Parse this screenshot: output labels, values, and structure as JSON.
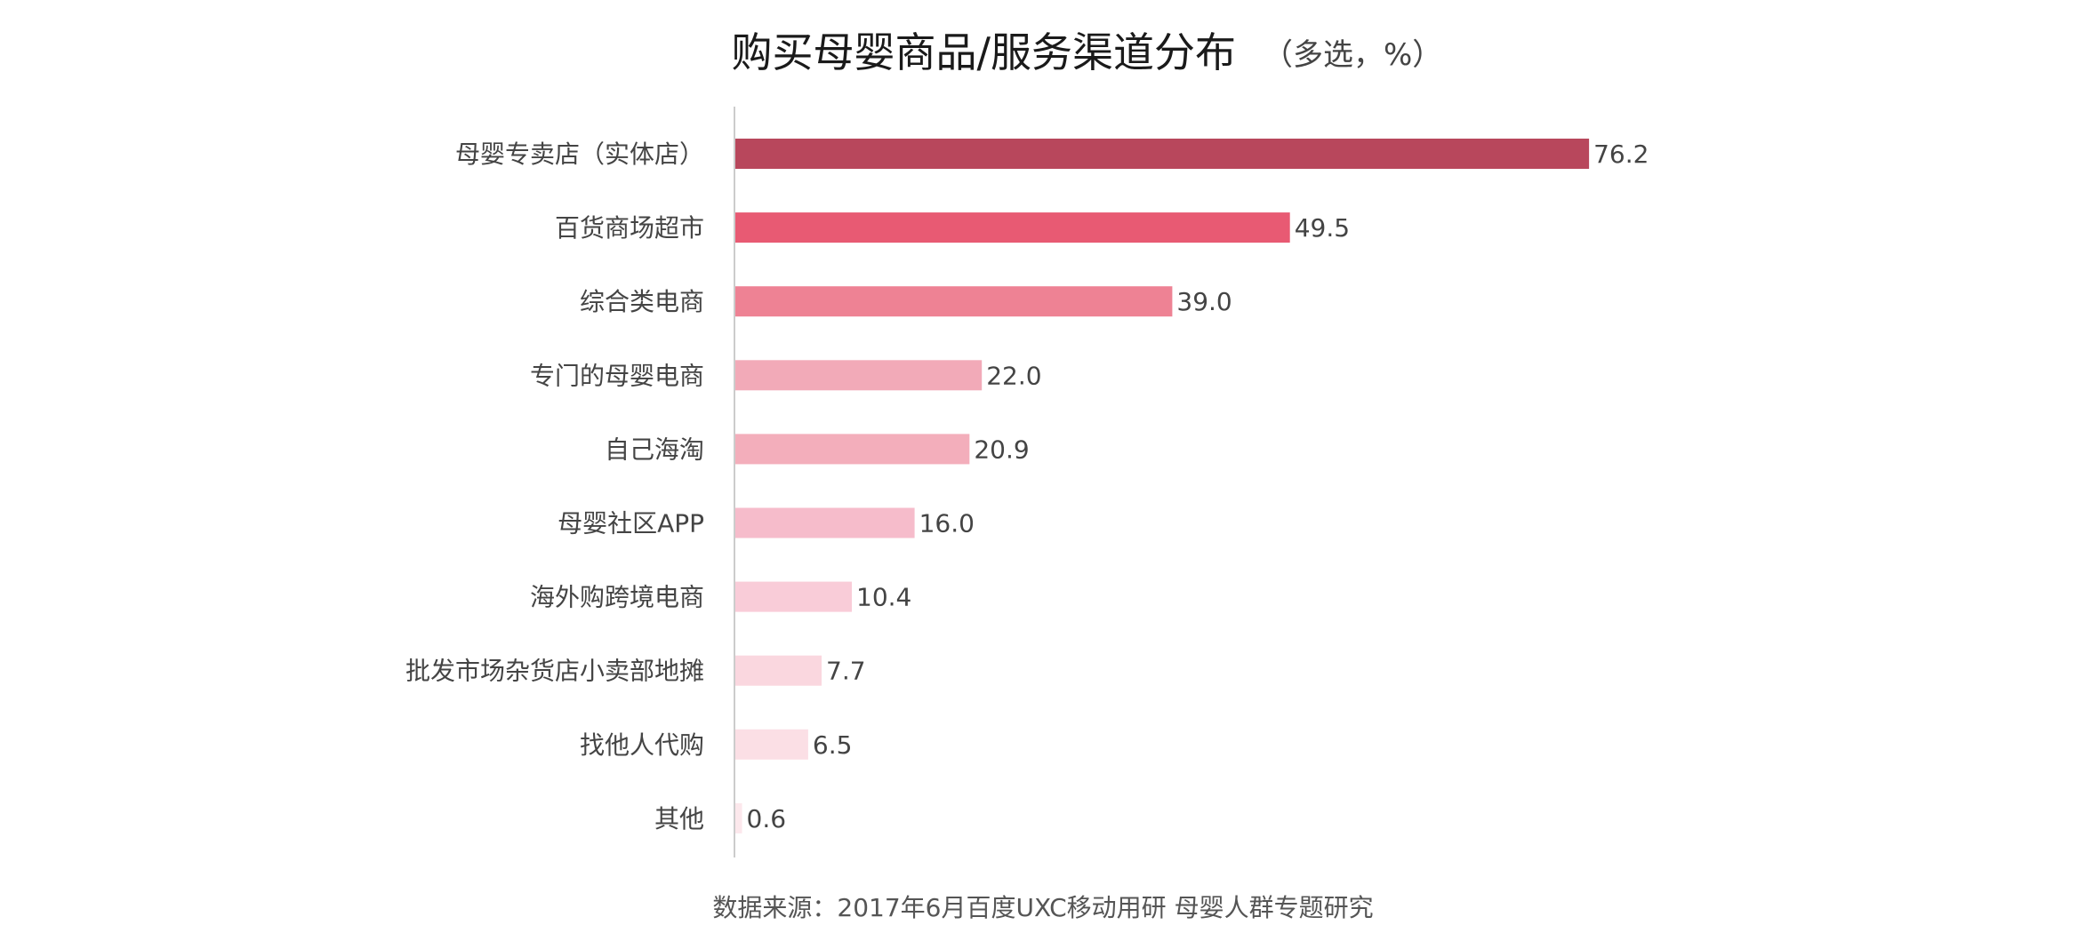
{
  "chart_data": {
    "type": "bar",
    "orientation": "horizontal",
    "title": "购买母婴商品/服务渠道分布",
    "subtitle": "（多选，%）",
    "categories": [
      "母婴专卖店（实体店）",
      "百货商场超市",
      "综合类电商",
      "专门的母婴电商",
      "自己海淘",
      "母婴社区APP",
      "海外购跨境电商",
      "批发市场杂货店小卖部地摊",
      "找他人代购",
      "其他"
    ],
    "values": [
      76.2,
      49.5,
      39.0,
      22.0,
      20.9,
      16.0,
      10.4,
      7.7,
      6.5,
      0.6
    ],
    "value_labels": [
      "76.2",
      "49.5",
      "39.0",
      "22.0",
      "20.9",
      "16.0",
      "10.4",
      "7.7",
      "6.5",
      "0.6"
    ],
    "colors": [
      "#b8475c",
      "#e85a73",
      "#ee8294",
      "#f2aab8",
      "#f3aebb",
      "#f6bccb",
      "#f9ccd8",
      "#fad7df",
      "#fbdfe5",
      "#fce8ec"
    ],
    "xlim": [
      0,
      100
    ],
    "grid": false,
    "legend": "none",
    "source": "数据来源：2017年6月百度UXC移动用研 母婴人群专题研究"
  }
}
